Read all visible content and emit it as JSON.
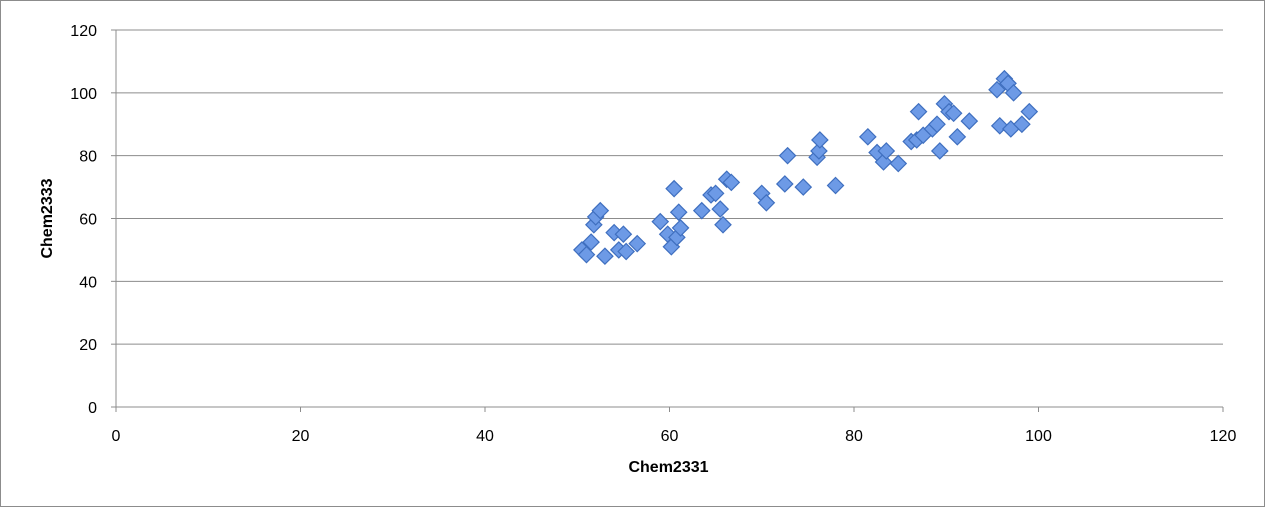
{
  "chart_data": {
    "type": "scatter",
    "title": "",
    "xlabel": "Chem2331",
    "ylabel": "Chem2333",
    "xlim": [
      0,
      120
    ],
    "ylim": [
      0,
      120
    ],
    "x_ticks": [
      0,
      20,
      40,
      60,
      80,
      100,
      120
    ],
    "y_ticks": [
      0,
      20,
      40,
      60,
      80,
      100,
      120
    ],
    "grid": "horizontal",
    "legend": "none",
    "marker": "diamond",
    "colors": {
      "marker_fill": "#6d9ae6",
      "marker_stroke": "#3f6fbf",
      "grid": "#8c8c8c",
      "axis": "#8c8c8c"
    },
    "series": [
      {
        "points": [
          [
            50.5,
            50
          ],
          [
            51,
            48.5
          ],
          [
            51.5,
            52.5
          ],
          [
            51.8,
            58
          ],
          [
            52,
            60.5
          ],
          [
            52.5,
            62.5
          ],
          [
            53,
            48
          ],
          [
            54,
            55.5
          ],
          [
            54.5,
            50
          ],
          [
            55,
            55
          ],
          [
            55.3,
            49.5
          ],
          [
            56.5,
            52
          ],
          [
            59,
            59
          ],
          [
            59.8,
            55
          ],
          [
            60.2,
            51
          ],
          [
            60.5,
            69.5
          ],
          [
            60.8,
            54
          ],
          [
            61,
            62
          ],
          [
            61.2,
            57
          ],
          [
            63.5,
            62.5
          ],
          [
            64.5,
            67.5
          ],
          [
            65,
            68
          ],
          [
            65.5,
            63
          ],
          [
            65.8,
            58
          ],
          [
            66.2,
            72.5
          ],
          [
            66.7,
            71.5
          ],
          [
            70,
            68
          ],
          [
            70.5,
            65
          ],
          [
            72.5,
            71
          ],
          [
            72.8,
            80
          ],
          [
            74.5,
            70
          ],
          [
            76,
            79.5
          ],
          [
            76.2,
            81.5
          ],
          [
            76.3,
            85
          ],
          [
            78,
            70.5
          ],
          [
            81.5,
            86
          ],
          [
            82.5,
            81
          ],
          [
            83.2,
            78
          ],
          [
            83.5,
            81.5
          ],
          [
            84.8,
            77.5
          ],
          [
            86.2,
            84.5
          ],
          [
            86.8,
            85
          ],
          [
            87,
            94
          ],
          [
            87.5,
            86.5
          ],
          [
            88.5,
            88.5
          ],
          [
            89,
            90
          ],
          [
            89.3,
            81.5
          ],
          [
            89.8,
            96.5
          ],
          [
            90.3,
            94
          ],
          [
            90.8,
            93.5
          ],
          [
            91.2,
            86
          ],
          [
            92.5,
            91
          ],
          [
            95.5,
            101
          ],
          [
            95.8,
            89.5
          ],
          [
            96.3,
            104.5
          ],
          [
            96.7,
            103
          ],
          [
            97,
            88.5
          ],
          [
            97.3,
            100
          ],
          [
            98.2,
            90
          ],
          [
            99,
            94
          ]
        ]
      }
    ]
  }
}
